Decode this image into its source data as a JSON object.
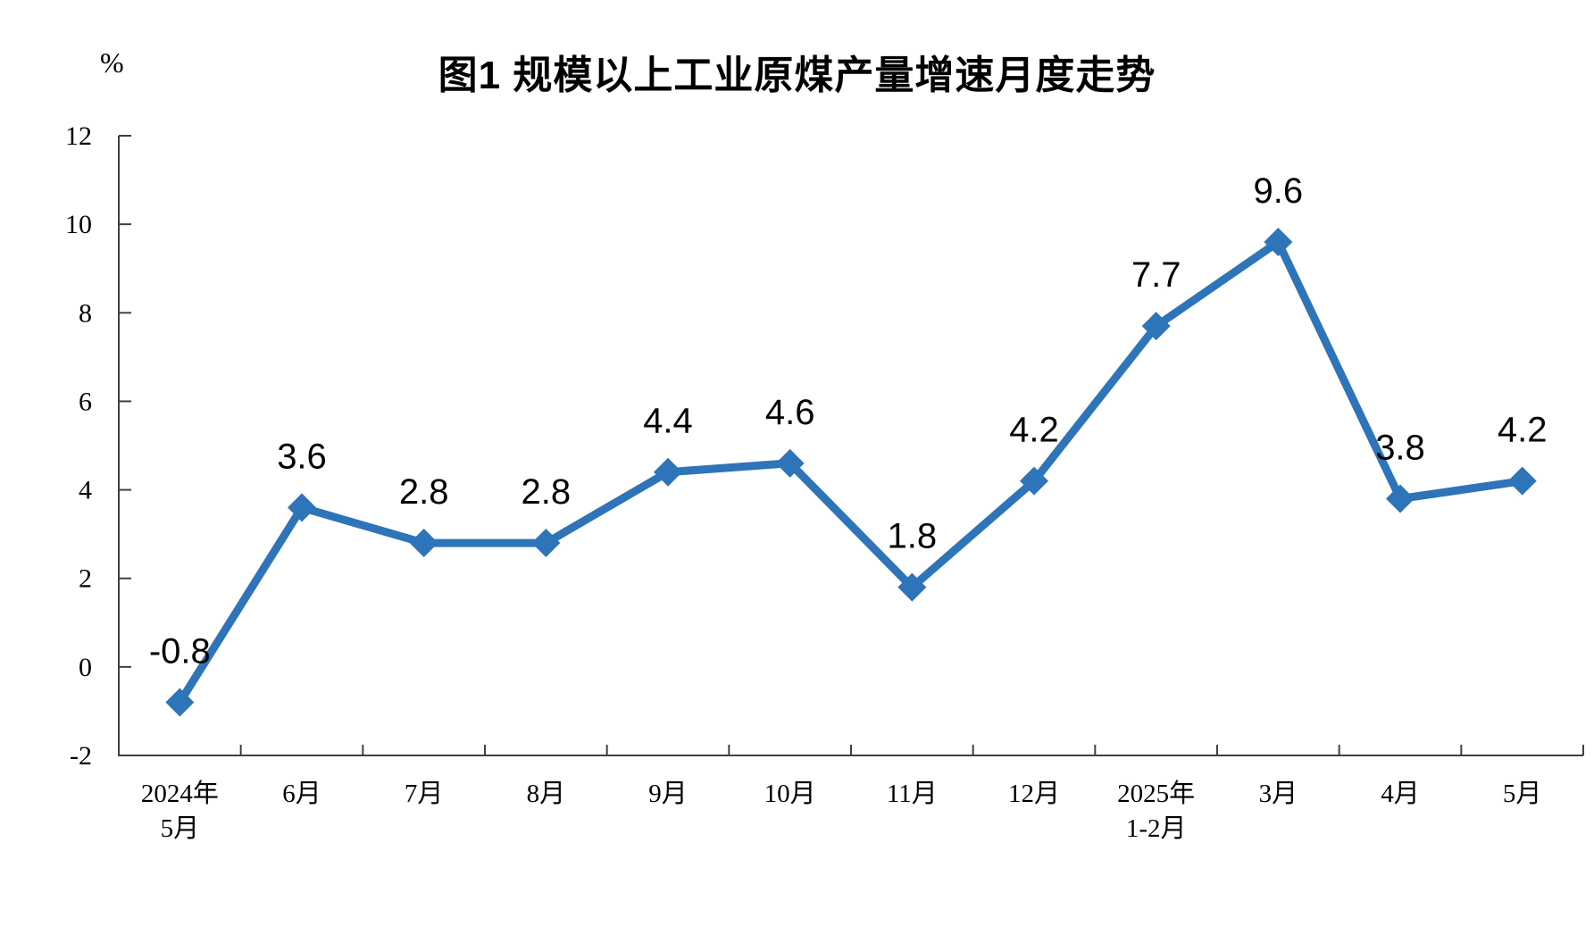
{
  "chart": {
    "title": "图1  规模以上工业原煤产量增速月度走势",
    "unit_label": "%",
    "colors": {
      "line": "#2E74B8",
      "marker": "#2E74B8",
      "axis": "#404040",
      "text": "#000000",
      "background": "#ffffff"
    }
  },
  "chart_data": {
    "type": "line",
    "title": "图1  规模以上工业原煤产量增速月度走势",
    "xlabel": "",
    "ylabel": "%",
    "categories": [
      "2024年\n5月",
      "6月",
      "7月",
      "8月",
      "9月",
      "10月",
      "11月",
      "12月",
      "2025年\n1-2月",
      "3月",
      "4月",
      "5月"
    ],
    "values": [
      -0.8,
      3.6,
      2.8,
      2.8,
      4.4,
      4.6,
      1.8,
      4.2,
      7.7,
      9.6,
      3.8,
      4.2
    ],
    "data_labels": [
      "-0.8",
      "3.6",
      "2.8",
      "2.8",
      "4.4",
      "4.6",
      "1.8",
      "4.2",
      "7.7",
      "9.6",
      "3.8",
      "4.2"
    ],
    "ylim": [
      -2,
      12
    ],
    "ytick_step": 2,
    "ytick_labels": [
      "-2",
      "0",
      "2",
      "4",
      "6",
      "8",
      "10",
      "12"
    ],
    "grid": false,
    "legend": null,
    "marker": "diamond",
    "line_color": "#2E74B8"
  }
}
